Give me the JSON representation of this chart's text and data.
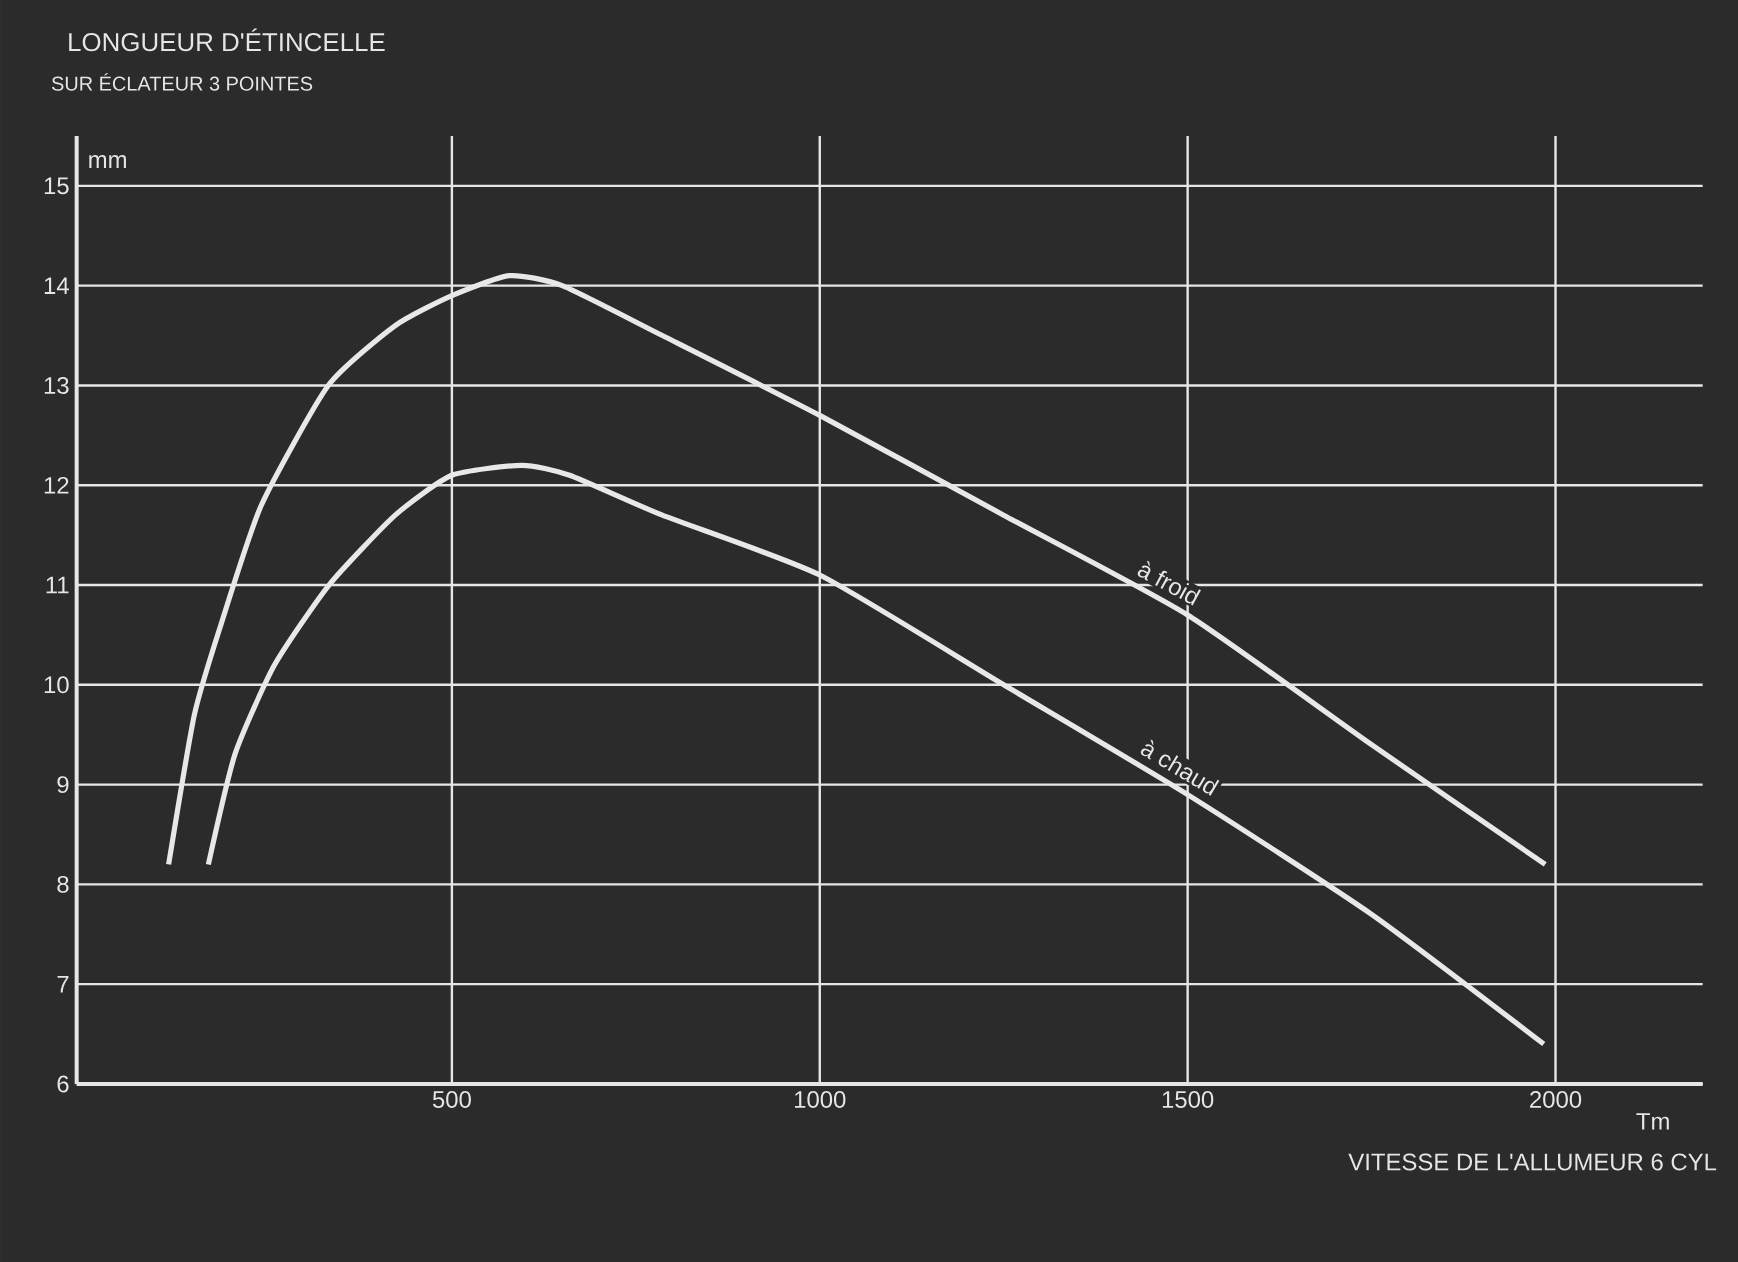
{
  "chart_data": {
    "type": "line",
    "title": "LONGUEUR D'ÉTINCELLE",
    "subtitle": "SUR ÉCLATEUR 3 POINTES",
    "xlabel": "VITESSE DE L'ALLUMEUR 6 CYL",
    "ylabel": "mm",
    "annotations": [
      "Tm"
    ],
    "xlim": [
      -10,
      2200
    ],
    "ylim": [
      6,
      15.5
    ],
    "xticks": [
      500,
      1000,
      1500,
      2000
    ],
    "yticks": [
      6,
      7,
      8,
      9,
      10,
      11,
      12,
      13,
      14,
      15
    ],
    "grid": true,
    "legend": false,
    "marker": "none",
    "line_style": "solid",
    "series": [
      {
        "name": "à froid",
        "color": "#e8e8e8",
        "x": [
          115,
          150,
          186,
          241,
          332,
          423,
          500,
          578,
          650,
          786,
          1000,
          1250,
          1500,
          1750,
          1986
        ],
        "values": [
          8.2,
          9.7,
          10.6,
          11.8,
          13.0,
          13.6,
          13.9,
          14.1,
          14.0,
          13.5,
          12.7,
          11.7,
          10.7,
          9.4,
          8.2
        ]
      },
      {
        "name": "à chaud",
        "color": "#e8e8e8",
        "x": [
          169,
          205,
          259,
          333,
          423,
          500,
          595,
          660,
          786,
          1000,
          1250,
          1500,
          1750,
          1984
        ],
        "values": [
          8.2,
          9.3,
          10.2,
          11.0,
          11.7,
          12.1,
          12.2,
          12.1,
          11.7,
          11.1,
          10.0,
          8.9,
          7.7,
          6.4
        ]
      }
    ]
  }
}
